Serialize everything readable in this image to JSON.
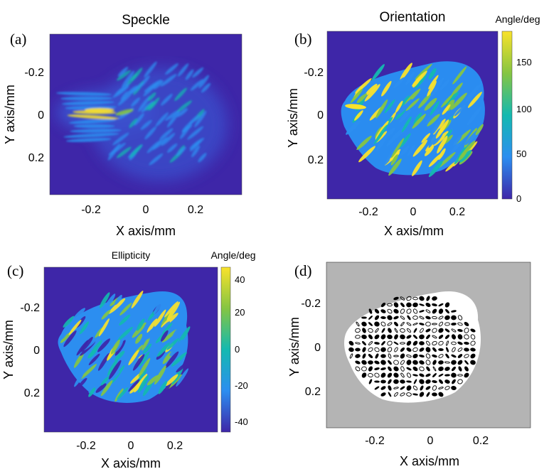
{
  "figure": {
    "panels": [
      {
        "letter": "(a)",
        "title": "Speckle",
        "xlabel": "X axis/mm",
        "ylabel": "Y axis/mm",
        "xticks": [
          "-0.2",
          "0",
          "0.2"
        ],
        "yticks": [
          "-0.2",
          "0",
          "0.2"
        ]
      },
      {
        "letter": "(b)",
        "title": "Orientation",
        "xlabel": "X axis/mm",
        "ylabel": "Y axis/mm",
        "xticks": [
          "-0.2",
          "0",
          "0.2"
        ],
        "yticks": [
          "-0.2",
          "0",
          "0.2"
        ],
        "colorbar": {
          "title": "Angle/deg",
          "ticks": [
            "150",
            "100",
            "50",
            "0"
          ]
        }
      },
      {
        "letter": "(c)",
        "title": "Ellipticity",
        "xlabel": "X axis/mm",
        "ylabel": "Y axis/mm",
        "xticks": [
          "-0.2",
          "0",
          "0.2"
        ],
        "yticks": [
          "-0.2",
          "0",
          "0.2"
        ],
        "colorbar": {
          "title": "Angle/deg",
          "ticks": [
            "40",
            "20",
            "0",
            "-20",
            "-40"
          ]
        }
      },
      {
        "letter": "(d)",
        "title": "",
        "xlabel": "X axis/mm",
        "ylabel": "Y axis/mm",
        "xticks": [
          "-0.2",
          "0",
          "0.2"
        ],
        "yticks": [
          "-0.2",
          "0",
          "0.2"
        ]
      }
    ]
  },
  "colors": {
    "parula_dark": "#3e26a8",
    "parula_blue": "#2c8ef0",
    "parula_teal": "#14b9b0",
    "parula_green": "#85c542",
    "parula_yellow": "#f9e22b",
    "gray_background": "#b4b4b4",
    "ellipse": "#000000"
  }
}
